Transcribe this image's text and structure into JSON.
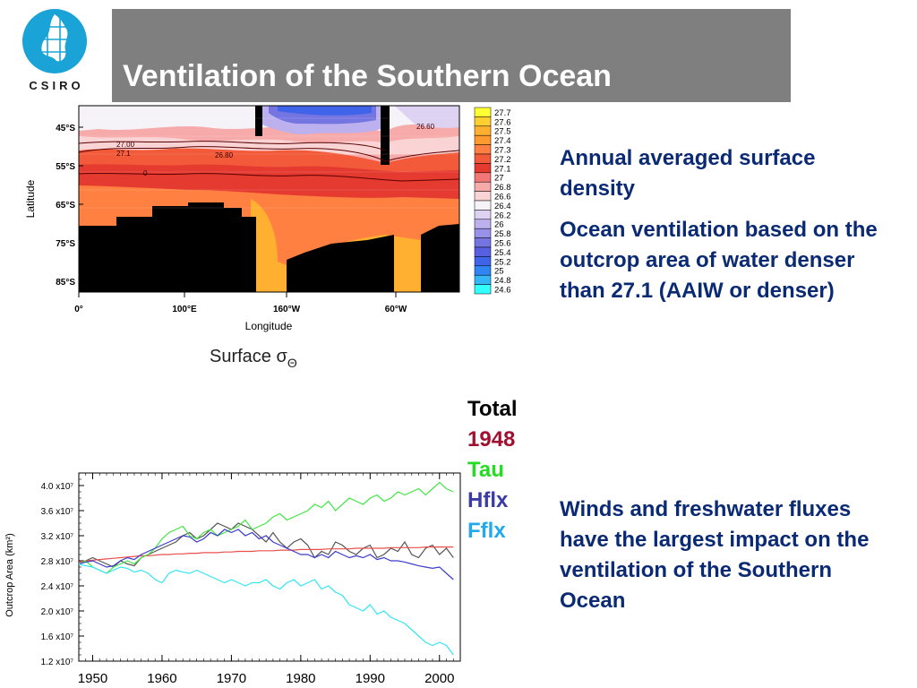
{
  "header": {
    "title": "Ventilation of the Southern Ocean",
    "logo_text": "CSIRO"
  },
  "text": {
    "density_caption": "Annual averaged surface density",
    "ventilation_note": "Ocean ventilation based on the outcrop area of water denser than 27.1 (AAIW or denser)",
    "conclusion": "Winds and freshwater fluxes have the largest impact on the ventilation of the Southern Ocean"
  },
  "colors": {
    "title_bar": "#7f7f7f",
    "text_blue": "#0b2a74",
    "logo_blue": "#1aa3d6"
  },
  "chart_data": [
    {
      "type": "heatmap",
      "title": "",
      "caption": "Surface σ",
      "caption_subscript": "Θ",
      "xlabel": "Longitude",
      "ylabel": "Latitude",
      "x_ticks": [
        "0°",
        "100°E",
        "160°W",
        "60°W"
      ],
      "y_ticks": [
        "45°S",
        "55°S",
        "65°S",
        "75°S",
        "85°S"
      ],
      "contour_labels": [
        "27.00",
        "27.1",
        "26.80",
        "26.60",
        "0"
      ],
      "colorbar": {
        "levels": [
          "27.7",
          "27.6",
          "27.5",
          "27.4",
          "27.3",
          "27.2",
          "27.1",
          "27",
          "26.8",
          "26.6",
          "26.4",
          "26.2",
          "26",
          "25.8",
          "25.6",
          "25.4",
          "25.2",
          "25",
          "24.8",
          "24.6"
        ],
        "colors": [
          "#ffff33",
          "#ffd030",
          "#ffb030",
          "#ff9a2e",
          "#ff8040",
          "#f25a3a",
          "#e53a30",
          "#f27777",
          "#f7aaaa",
          "#fad4d4",
          "#f6f3f8",
          "#ded2f2",
          "#bdb0ee",
          "#9892e8",
          "#7575e2",
          "#5660e0",
          "#3f64ea",
          "#2f86f2",
          "#34b6f8",
          "#33ffff"
        ]
      }
    },
    {
      "type": "line",
      "title": "",
      "xlabel": "",
      "ylabel": "Outcrop Area (km²)",
      "x_ticks": [
        "1950",
        "1960",
        "1970",
        "1980",
        "1990",
        "2000"
      ],
      "y_ticks": [
        "4.0 x10⁷",
        "3.6 x10⁷",
        "3.2 x10⁷",
        "2.8 x10⁷",
        "2.4 x10⁷",
        "2.0 x10⁷",
        "1.6 x10⁷",
        "1.2 x10⁷"
      ],
      "x": [
        1948,
        1949,
        1950,
        1951,
        1952,
        1953,
        1954,
        1955,
        1956,
        1957,
        1958,
        1959,
        1960,
        1961,
        1962,
        1963,
        1964,
        1965,
        1966,
        1967,
        1968,
        1969,
        1970,
        1971,
        1972,
        1973,
        1974,
        1975,
        1976,
        1977,
        1978,
        1979,
        1980,
        1981,
        1982,
        1983,
        1984,
        1985,
        1986,
        1987,
        1988,
        1989,
        1990,
        1991,
        1992,
        1993,
        1994,
        1995,
        1996,
        1997,
        1998,
        1999,
        2000,
        2001,
        2002
      ],
      "ylim": [
        1.2,
        4.2
      ],
      "xlim": [
        1948,
        2003
      ],
      "series": [
        {
          "name": "Total",
          "color": "#555555",
          "values": [
            2.75,
            2.8,
            2.85,
            2.8,
            2.75,
            2.7,
            2.8,
            2.75,
            2.72,
            2.85,
            2.9,
            2.95,
            3.0,
            3.05,
            3.1,
            3.2,
            3.25,
            3.15,
            3.2,
            3.3,
            3.4,
            3.35,
            3.3,
            3.4,
            3.35,
            3.3,
            3.2,
            3.1,
            3.25,
            3.1,
            3.0,
            3.1,
            3.15,
            3.05,
            2.85,
            2.95,
            2.9,
            3.1,
            3.05,
            2.95,
            2.9,
            3.0,
            3.05,
            2.85,
            2.9,
            3.0,
            2.95,
            3.1,
            2.9,
            2.85,
            3.0,
            3.05,
            2.9,
            3.0,
            2.85
          ]
        },
        {
          "name": "1948",
          "color": "#e8504c",
          "values": [
            2.78,
            2.8,
            2.81,
            2.82,
            2.83,
            2.84,
            2.85,
            2.86,
            2.87,
            2.88,
            2.88,
            2.89,
            2.9,
            2.9,
            2.91,
            2.91,
            2.92,
            2.92,
            2.93,
            2.93,
            2.93,
            2.94,
            2.94,
            2.95,
            2.95,
            2.95,
            2.96,
            2.96,
            2.96,
            2.97,
            2.97,
            2.97,
            2.98,
            2.98,
            2.98,
            2.98,
            2.99,
            2.99,
            2.99,
            2.99,
            3.0,
            3.0,
            3.0,
            3.0,
            3.0,
            3.01,
            3.01,
            3.01,
            3.01,
            3.01,
            3.02,
            3.02,
            3.02,
            3.02,
            3.02
          ]
        },
        {
          "name": "Tau",
          "color": "#44e644",
          "values": [
            2.75,
            2.8,
            2.7,
            2.65,
            2.6,
            2.7,
            2.75,
            2.8,
            2.75,
            2.85,
            2.9,
            3.0,
            3.15,
            3.25,
            3.3,
            3.35,
            3.2,
            3.15,
            3.25,
            3.3,
            3.2,
            3.25,
            3.3,
            3.35,
            3.45,
            3.3,
            3.35,
            3.4,
            3.5,
            3.55,
            3.45,
            3.5,
            3.55,
            3.6,
            3.7,
            3.65,
            3.75,
            3.6,
            3.7,
            3.8,
            3.75,
            3.7,
            3.8,
            3.85,
            3.75,
            3.8,
            3.9,
            3.85,
            3.9,
            3.95,
            3.85,
            3.95,
            4.05,
            3.95,
            3.9
          ]
        },
        {
          "name": "Hflx",
          "color": "#3c3ccc",
          "values": [
            2.75,
            2.78,
            2.8,
            2.75,
            2.7,
            2.72,
            2.8,
            2.85,
            2.82,
            2.9,
            2.95,
            3.0,
            3.05,
            3.1,
            3.15,
            3.2,
            3.18,
            3.1,
            3.15,
            3.25,
            3.2,
            3.3,
            3.25,
            3.3,
            3.2,
            3.25,
            3.15,
            3.2,
            3.1,
            3.05,
            3.0,
            2.95,
            2.9,
            2.9,
            2.85,
            2.9,
            2.85,
            2.95,
            2.9,
            2.85,
            2.88,
            2.85,
            2.9,
            2.82,
            2.85,
            2.8,
            2.8,
            2.78,
            2.75,
            2.72,
            2.7,
            2.68,
            2.7,
            2.6,
            2.5
          ]
        },
        {
          "name": "Fflx",
          "color": "#33e6f2",
          "values": [
            2.75,
            2.72,
            2.7,
            2.65,
            2.6,
            2.65,
            2.7,
            2.68,
            2.62,
            2.65,
            2.6,
            2.5,
            2.45,
            2.6,
            2.65,
            2.62,
            2.6,
            2.65,
            2.6,
            2.55,
            2.5,
            2.45,
            2.5,
            2.45,
            2.4,
            2.45,
            2.45,
            2.5,
            2.4,
            2.35,
            2.45,
            2.5,
            2.4,
            2.45,
            2.5,
            2.35,
            2.4,
            2.3,
            2.25,
            2.1,
            2.05,
            2.0,
            2.1,
            1.95,
            2.0,
            1.9,
            1.85,
            1.8,
            1.7,
            1.6,
            1.5,
            1.45,
            1.5,
            1.45,
            1.3
          ]
        }
      ]
    }
  ]
}
